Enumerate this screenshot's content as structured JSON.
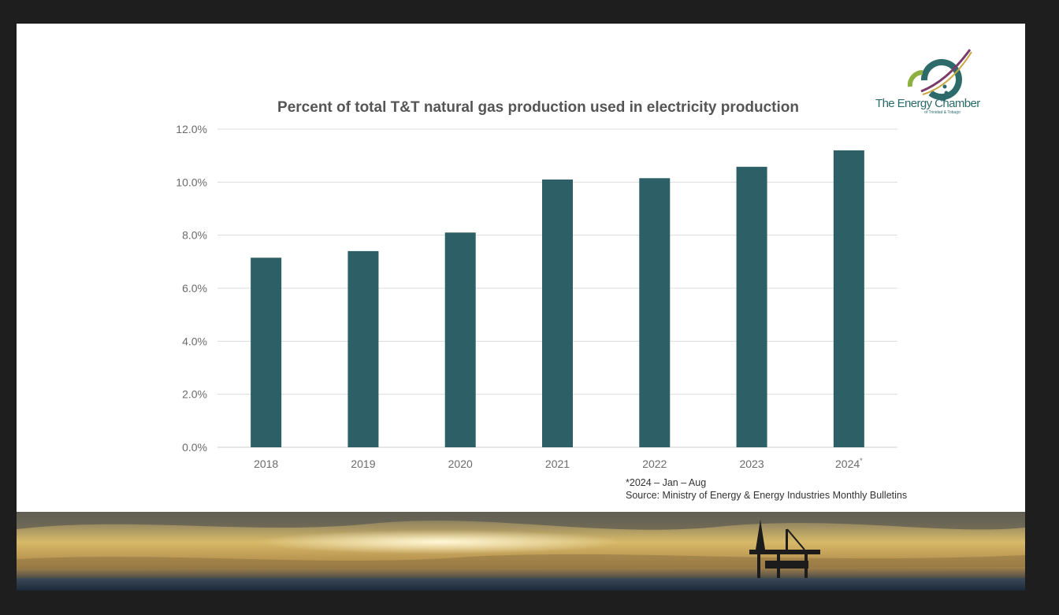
{
  "chart_data": {
    "type": "bar",
    "title": "Percent of total T&T natural gas production used in electricity production",
    "categories": [
      "2018",
      "2019",
      "2020",
      "2021",
      "2022",
      "2023",
      "2024"
    ],
    "category_labels": [
      "2018",
      "2019",
      "2020",
      "2021",
      "2022",
      "2023",
      "2024*"
    ],
    "values": [
      7.15,
      7.4,
      8.1,
      10.1,
      10.15,
      10.58,
      11.2
    ],
    "value_unit": "%",
    "yticks": [
      "0.0%",
      "2.0%",
      "4.0%",
      "6.0%",
      "8.0%",
      "10.0%",
      "12.0%"
    ],
    "ylim": [
      0,
      12
    ],
    "xlabel": "",
    "ylabel": "",
    "grid": true,
    "legend": "none",
    "bar_color": "#2d6066"
  },
  "notes": {
    "footnote": "*2024 – Jan – Aug",
    "source": "Source: Ministry of Energy & Energy Industries Monthly Bulletins"
  },
  "logo": {
    "name": "The Energy Chamber",
    "tagline": "of Trinidad & Tobago",
    "colors": {
      "teal": "#2d6a6a",
      "gold": "#c8a640",
      "green": "#8db040",
      "purple": "#7a3a6a"
    }
  },
  "background_image": {
    "description_icon": "offshore-oil-rig-sunset"
  }
}
